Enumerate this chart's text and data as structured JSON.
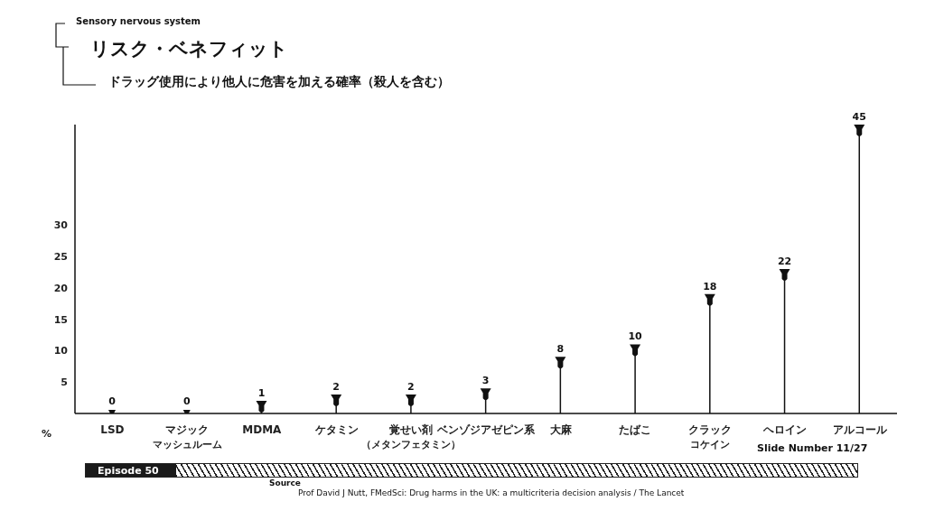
{
  "chart_data": {
    "type": "lollipop",
    "title": "リスク・ベネフィット",
    "subtitle": "ドラッグ使用により他人に危害を加える確率（殺人を含む）",
    "ylabel": "%",
    "annotations": [
      "Sensory nervous system",
      "Episode 50",
      "Slide Number 11/27",
      "Source",
      "Prof David J Nutt, FMedSci: Drug harms in the UK: a multicriteria decision analysis / The Lancet"
    ],
    "categories": [
      "LSD",
      "マジックマッシュルーム",
      "MDMA",
      "ケタミン",
      "覚せい剤（メタンフェタミン）",
      "ベンゾジアゼピン系",
      "大麻",
      "たばこ",
      "クラックコケイン",
      "ヘロイン",
      "アルコール"
    ],
    "values": [
      0,
      0,
      1,
      2,
      2,
      3,
      8,
      10,
      18,
      22,
      45
    ],
    "color": "#111111",
    "ylim": [
      0,
      46
    ],
    "yticks": [
      5,
      10,
      15,
      20,
      25,
      30
    ],
    "data_labels": true
  }
}
